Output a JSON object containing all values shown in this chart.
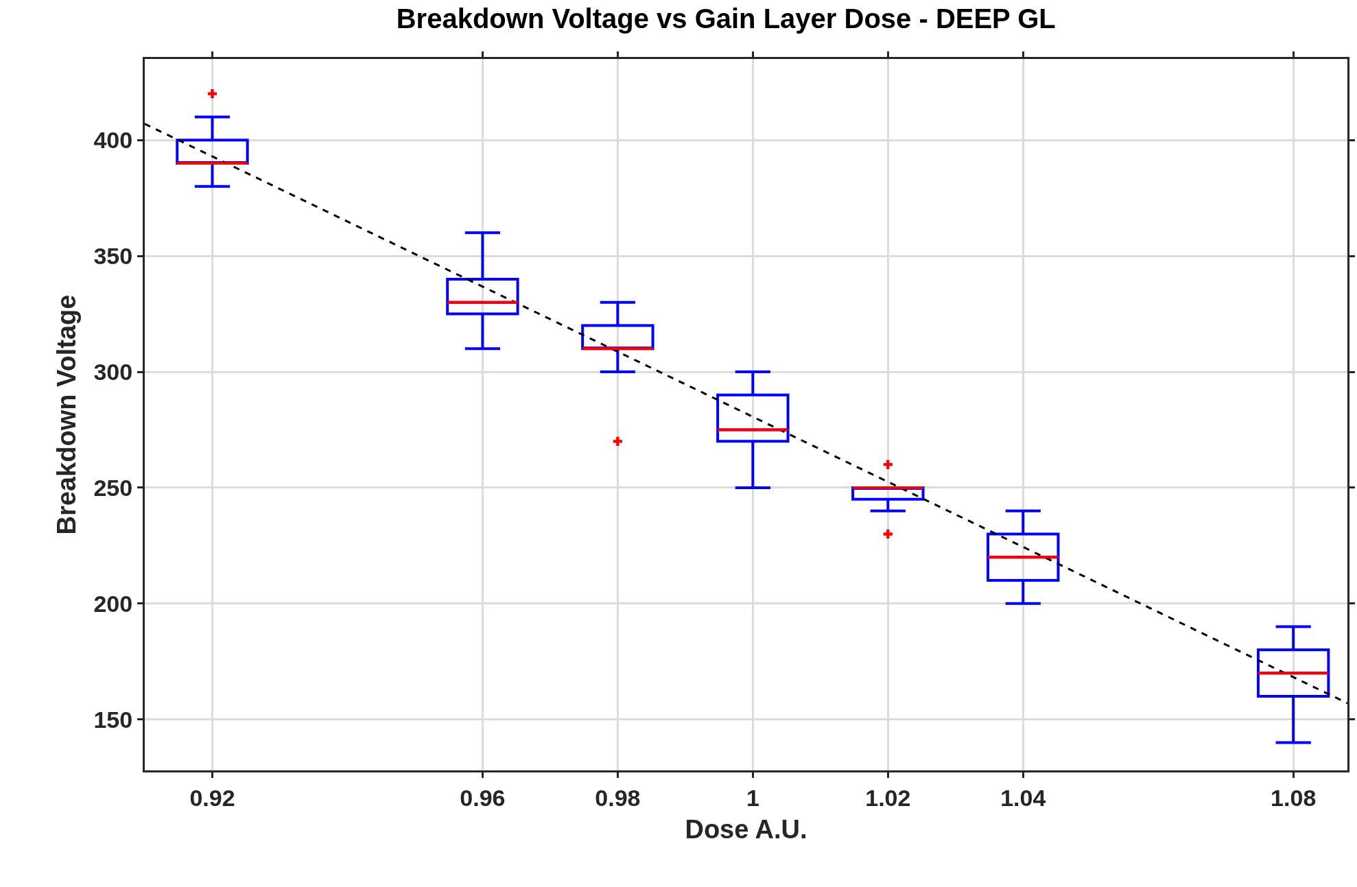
{
  "chart_data": {
    "type": "box",
    "title": "Breakdown Voltage vs Gain Layer Dose - DEEP GL",
    "xlabel": "Dose A.U.",
    "ylabel": "Breakdown Voltage",
    "x": [
      0.92,
      0.96,
      0.98,
      1,
      1.02,
      1.04,
      1.08
    ],
    "series": [
      {
        "color": "#0000ff",
        "marker": "cross",
        "boxes": [
          {
            "low": 380,
            "q1": 390,
            "median": 390,
            "q3": 400,
            "high": 410,
            "outliers": [
              420
            ]
          },
          {
            "low": 310,
            "q1": 325,
            "median": 330,
            "q3": 340,
            "high": 360
          },
          {
            "low": 300,
            "q1": 310,
            "median": 310,
            "q3": 320,
            "high": 330,
            "outliers": [
              270
            ]
          },
          {
            "low": 250,
            "q1": 270,
            "median": 275,
            "q3": 290,
            "high": 300
          },
          {
            "low": 240,
            "q1": 245,
            "median": 250,
            "q3": 250,
            "high": 250,
            "outliers": [
              260,
              230
            ]
          },
          {
            "low": 200,
            "q1": 210,
            "median": 220,
            "q3": 230,
            "high": 240
          },
          {
            "low": 140,
            "q1": 160,
            "median": 170,
            "q3": 180,
            "high": 190
          }
        ]
      },
      {
        "type": "line",
        "color": "#000000",
        "line_style": "dashed",
        "marker": "none",
        "x": [
          0.91,
          1.088
        ],
        "values": [
          407,
          157
        ]
      }
    ],
    "xlim": [
      0.91,
      1.088
    ],
    "ylim": [
      128,
      435
    ],
    "xticks": [
      0.92,
      0.96,
      0.98,
      1,
      1.02,
      1.04,
      1.08
    ],
    "yticks": [
      150,
      200,
      250,
      300,
      350,
      400
    ],
    "grid": true
  }
}
